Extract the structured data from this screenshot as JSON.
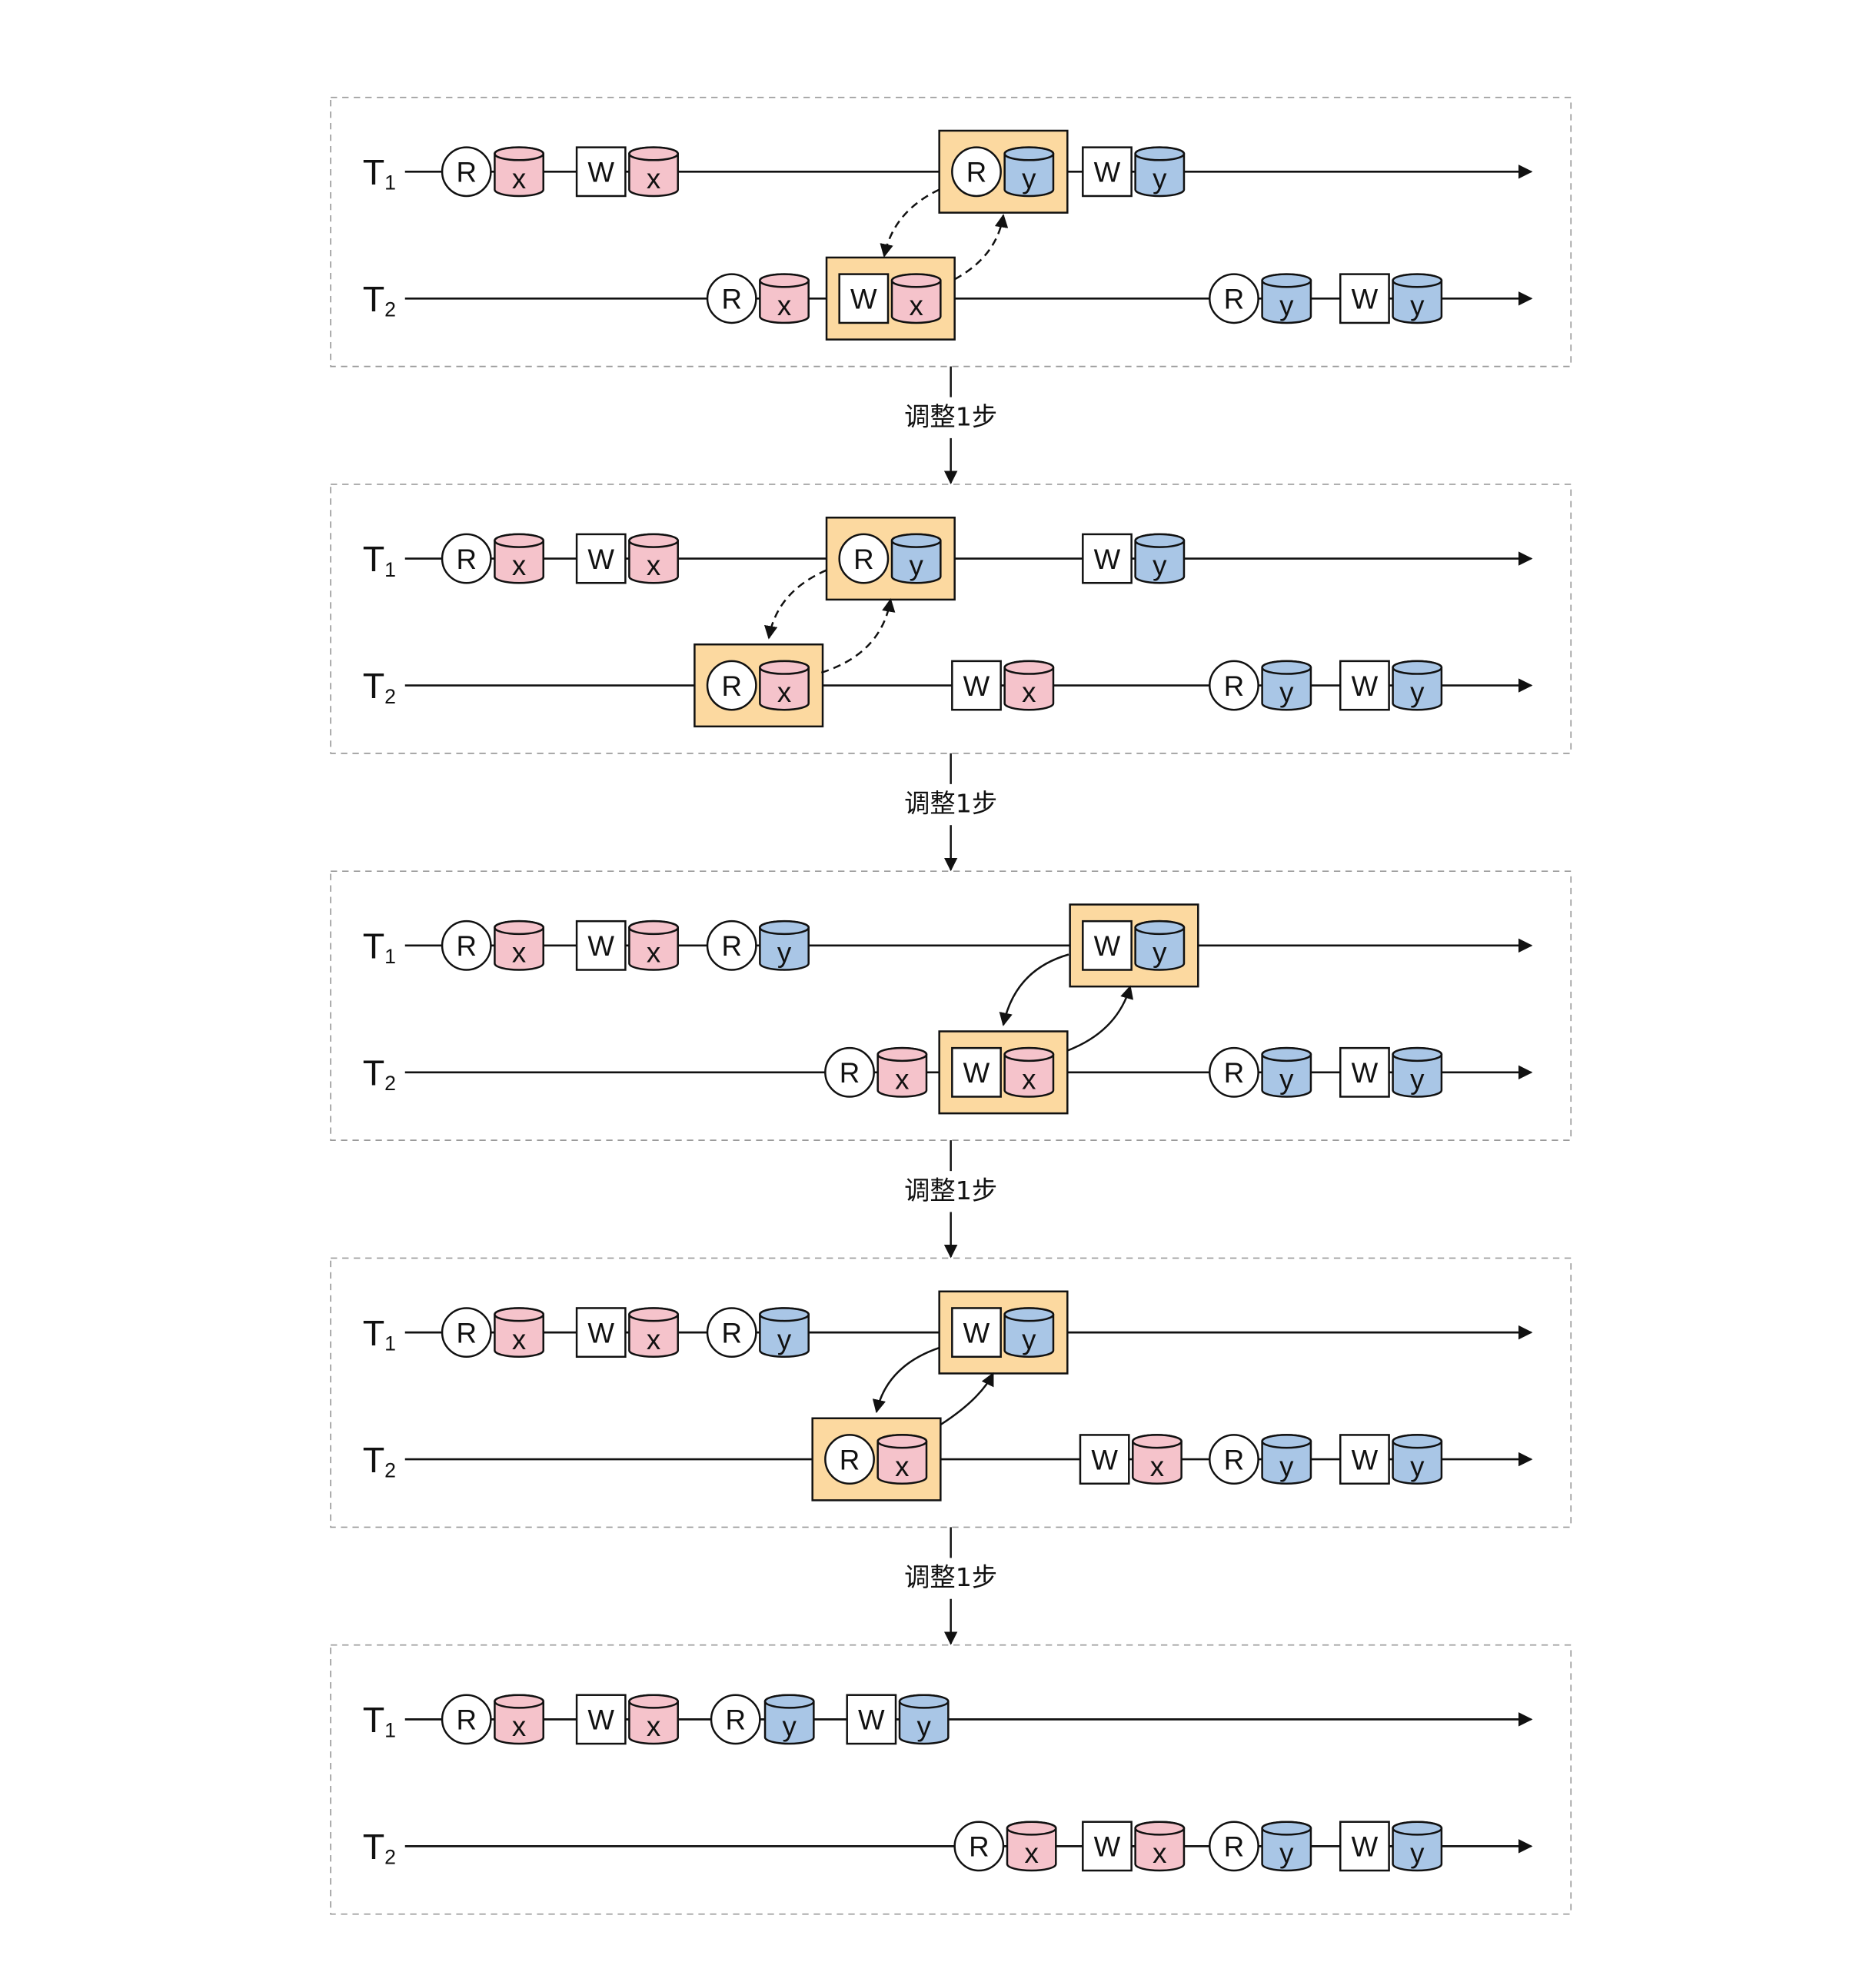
{
  "colors": {
    "x_item": "#f5c3cb",
    "y_item": "#a9c6e6",
    "highlight": "#fcd9a0",
    "line": "#111111"
  },
  "step_label": "调整1步",
  "tracks": [
    {
      "name": "T",
      "sub": "1"
    },
    {
      "name": "T",
      "sub": "2"
    }
  ],
  "panels": [
    {
      "arrow_style": "dashed",
      "t1": [
        {
          "op": "R",
          "item": "x"
        },
        {
          "op": "W",
          "item": "x"
        },
        {
          "op": "R",
          "item": "y",
          "highlighted": true
        },
        {
          "op": "W",
          "item": "y"
        }
      ],
      "t2": [
        {
          "op": "R",
          "item": "x"
        },
        {
          "op": "W",
          "item": "x",
          "highlighted": true
        },
        {
          "op": "R",
          "item": "y"
        },
        {
          "op": "W",
          "item": "y"
        }
      ]
    },
    {
      "arrow_style": "dashed",
      "t1": [
        {
          "op": "R",
          "item": "x"
        },
        {
          "op": "W",
          "item": "x"
        },
        {
          "op": "R",
          "item": "y",
          "highlighted": true
        },
        {
          "op": "W",
          "item": "y"
        }
      ],
      "t2": [
        {
          "op": "R",
          "item": "x",
          "highlighted": true
        },
        {
          "op": "W",
          "item": "x"
        },
        {
          "op": "R",
          "item": "y"
        },
        {
          "op": "W",
          "item": "y"
        }
      ]
    },
    {
      "arrow_style": "solid",
      "t1": [
        {
          "op": "R",
          "item": "x"
        },
        {
          "op": "W",
          "item": "x"
        },
        {
          "op": "R",
          "item": "y"
        },
        {
          "op": "W",
          "item": "y",
          "highlighted": true
        }
      ],
      "t2": [
        {
          "op": "R",
          "item": "x"
        },
        {
          "op": "W",
          "item": "x",
          "highlighted": true
        },
        {
          "op": "R",
          "item": "y"
        },
        {
          "op": "W",
          "item": "y"
        }
      ]
    },
    {
      "arrow_style": "solid",
      "t1": [
        {
          "op": "R",
          "item": "x"
        },
        {
          "op": "W",
          "item": "x"
        },
        {
          "op": "R",
          "item": "y"
        },
        {
          "op": "W",
          "item": "y",
          "highlighted": true
        }
      ],
      "t2": [
        {
          "op": "R",
          "item": "x",
          "highlighted": true
        },
        {
          "op": "W",
          "item": "x"
        },
        {
          "op": "R",
          "item": "y"
        },
        {
          "op": "W",
          "item": "y"
        }
      ]
    },
    {
      "arrow_style": "none",
      "t1": [
        {
          "op": "R",
          "item": "x"
        },
        {
          "op": "W",
          "item": "x"
        },
        {
          "op": "R",
          "item": "y"
        },
        {
          "op": "W",
          "item": "y"
        }
      ],
      "t2": [
        {
          "op": "R",
          "item": "x"
        },
        {
          "op": "W",
          "item": "x"
        },
        {
          "op": "R",
          "item": "y"
        },
        {
          "op": "W",
          "item": "y"
        }
      ]
    }
  ]
}
